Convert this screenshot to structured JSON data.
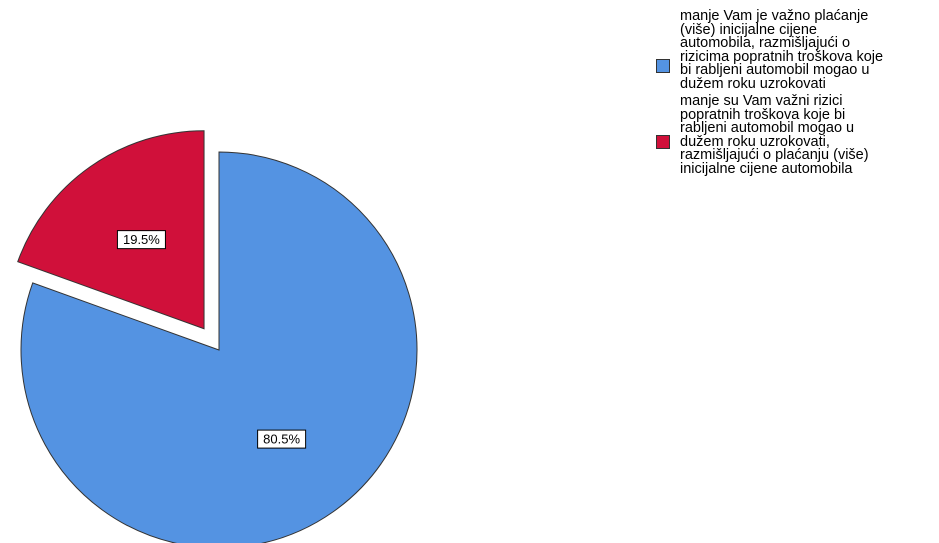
{
  "chart_data": {
    "type": "pie",
    "title": "",
    "slices": [
      {
        "label": "manje Vam je važno plaćanje\n(više) inicijalne cijene\nautomobila, razmišljajući o\nrizicima popratnih troškova koje\nbi rabljeni automobil mogao u\ndužem roku uzrokovati",
        "value": 80.5,
        "display": "80.5%",
        "color": "#5493E2",
        "exploded": false
      },
      {
        "label": "manje su Vam važni rizici\npopratnih troškova koje bi\nrabljeni automobil mogao u\ndužem roku uzrokovati,\nrazmišljajući o plaćanju (više)\ninicijalne cijene automobila",
        "value": 19.5,
        "display": "19.5%",
        "color": "#D0103A",
        "exploded": true
      }
    ],
    "legend_position": "top-right",
    "start_angle_deg": 0,
    "direction": "clockwise"
  }
}
